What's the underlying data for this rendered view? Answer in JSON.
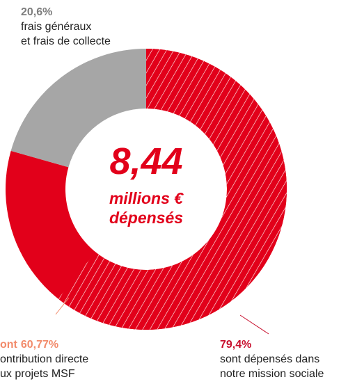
{
  "chart_data": {
    "type": "donut",
    "center_title": "8,44",
    "center_subtitle": [
      "millions €",
      "dépensés"
    ],
    "values": [
      79.4,
      20.6
    ],
    "value_labels": [
      "79,4%",
      "20,6%"
    ],
    "colors": [
      "#e2001a",
      "#a6a6a6"
    ],
    "label_colors": [
      "#c8102e",
      "#7d7d7d"
    ],
    "descriptions": [
      [
        "sont dépensés dans",
        "notre mission sociale"
      ],
      [
        "frais généraux",
        "et frais de collecte"
      ]
    ],
    "subsegment": {
      "value": 60.77,
      "prefix": "ont",
      "value_label": "60,77%",
      "pattern": "hatch",
      "label_color": "#f28b6b",
      "description": [
        "ontribution directe",
        "ux projets MSF"
      ]
    }
  }
}
